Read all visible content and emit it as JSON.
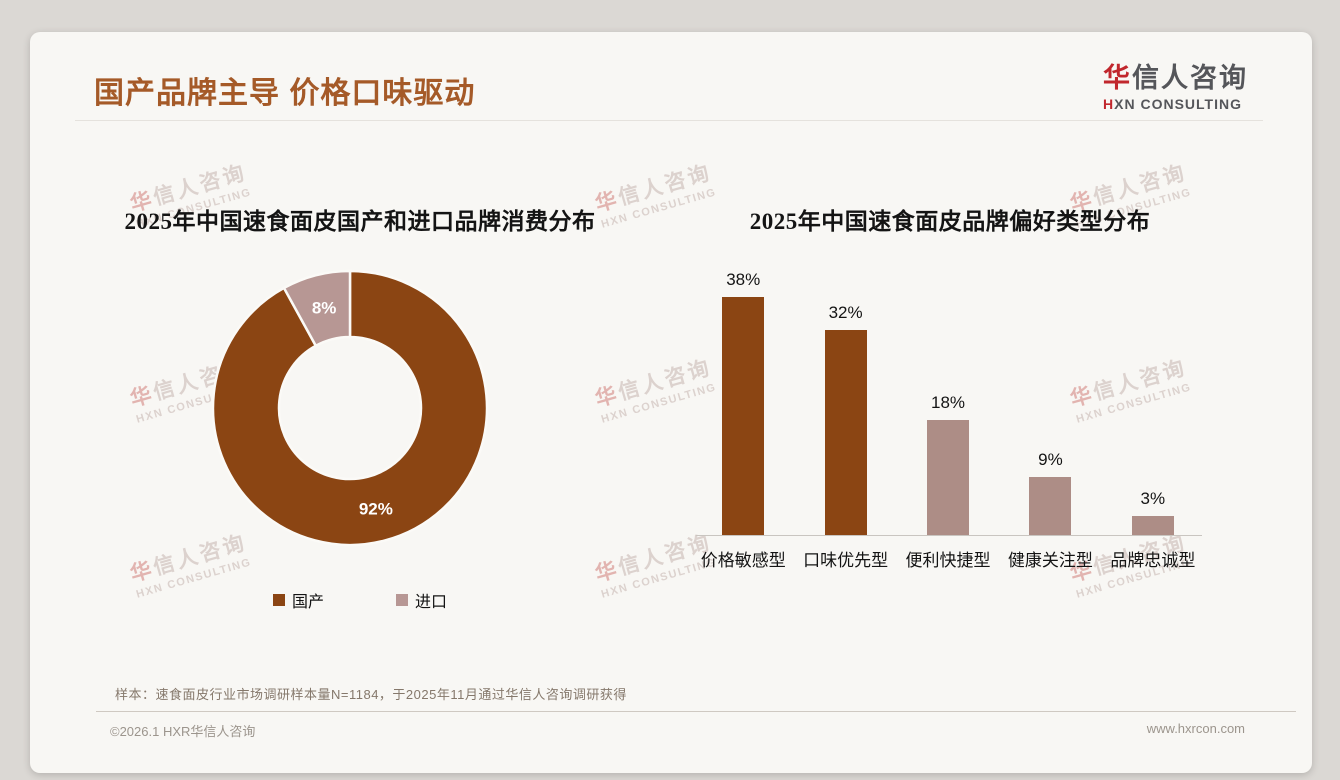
{
  "header": {
    "title": "国产品牌主导 价格口味驱动"
  },
  "logo": {
    "cn_first": "华",
    "cn_rest": "信人咨询",
    "en_first": "H",
    "en_rest": "XN CONSULTING"
  },
  "watermark": {
    "cn_first": "华",
    "cn_rest": "信人咨询",
    "en": "HXN CONSULTING"
  },
  "chart_data": [
    {
      "type": "pie",
      "donut": true,
      "title": "2025年中国速食面皮国产和进口品牌消费分布",
      "labels": [
        "国产",
        "进口"
      ],
      "values": [
        92,
        8
      ],
      "value_labels": [
        "92%",
        "8%"
      ],
      "colors": [
        "#8B4513",
        "#B79794"
      ],
      "label_color": "#FFFFFF",
      "legend_position": "bottom"
    },
    {
      "type": "bar",
      "title": "2025年中国速食面皮品牌偏好类型分布",
      "categories": [
        "价格敏感型",
        "口味优先型",
        "便利快捷型",
        "健康关注型",
        "品牌忠诚型"
      ],
      "values": [
        38,
        32,
        18,
        9,
        3
      ],
      "value_labels": [
        "38%",
        "32%",
        "18%",
        "9%",
        "3%"
      ],
      "colors": [
        "#8B4513",
        "#8B4513",
        "#AD8D86",
        "#AD8D86",
        "#AD8D86"
      ],
      "ylim": [
        0,
        40
      ],
      "grid": false,
      "legend": false
    }
  ],
  "footnote": {
    "text": "样本：速食面皮行业市场调研样本量N=1184，于2025年11月通过华信人咨询调研获得"
  },
  "footer": {
    "copyright": "©2026.1 HXR华信人咨询",
    "website": "www.hxrcon.com"
  },
  "colors": {
    "page_bg": "#DBD8D4",
    "card_bg": "#F8F7F4",
    "title_brown": "#A55A28",
    "brand_red": "#C1272D",
    "logo_gray": "#55565A",
    "divider": "#E5E2DD",
    "divider2": "#CFC9C2",
    "text_dark": "#141414",
    "donut_domestic": "#8B4513",
    "donut_import": "#B79794",
    "bar_dark": "#8B4513",
    "bar_light": "#AD8D86",
    "axis": "#C9C5C0",
    "footnote": "#85786B",
    "footer_gray": "#9C958D",
    "wm_pink": "#E2B4B0",
    "wm_gray": "#DCD2CE",
    "slice_gap": "#FBFAF7"
  }
}
